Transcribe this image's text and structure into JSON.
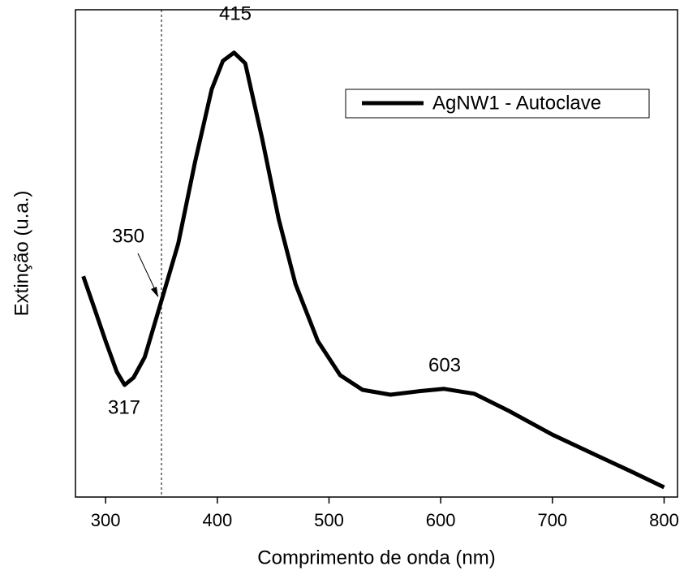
{
  "chart_data": {
    "type": "line",
    "xlabel": "Comprimento de onda (nm)",
    "ylabel": "Extinção (u.a.)",
    "x": [
      280,
      290,
      300,
      310,
      317,
      325,
      335,
      350,
      365,
      380,
      395,
      405,
      415,
      425,
      440,
      455,
      470,
      490,
      510,
      530,
      555,
      580,
      603,
      630,
      660,
      700,
      740,
      770,
      800
    ],
    "series": [
      {
        "name": "AgNW1 - Autoclave",
        "color": "#000000",
        "values": [
          0.453,
          0.387,
          0.32,
          0.257,
          0.23,
          0.245,
          0.287,
          0.403,
          0.52,
          0.687,
          0.837,
          0.895,
          0.912,
          0.89,
          0.737,
          0.57,
          0.437,
          0.32,
          0.25,
          0.22,
          0.21,
          0.217,
          0.222,
          0.212,
          0.178,
          0.128,
          0.085,
          0.053,
          0.02
        ]
      }
    ],
    "xlim": [
      273,
      812
    ],
    "xticks": [
      300,
      400,
      500,
      600,
      700,
      800
    ],
    "ylim": [
      0,
      1
    ],
    "vline": 350,
    "annotations": [
      "415",
      "317",
      "350",
      "603"
    ],
    "legend": "upper right"
  }
}
